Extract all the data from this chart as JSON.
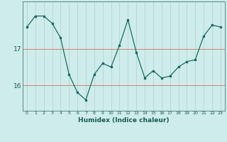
{
  "x": [
    0,
    1,
    2,
    3,
    4,
    5,
    6,
    7,
    8,
    9,
    10,
    11,
    12,
    13,
    14,
    15,
    16,
    17,
    18,
    19,
    20,
    21,
    22,
    23
  ],
  "y": [
    17.6,
    17.9,
    17.9,
    17.7,
    17.3,
    16.3,
    15.8,
    15.6,
    16.3,
    16.6,
    16.5,
    17.1,
    17.8,
    16.9,
    16.2,
    16.4,
    16.2,
    16.25,
    16.5,
    16.65,
    16.7,
    17.35,
    17.65,
    17.6
  ],
  "xlabel": "Humidex (Indice chaleur)",
  "yticks": [
    16,
    17
  ],
  "ytick_labels": [
    "16",
    "17"
  ],
  "ylim": [
    15.3,
    18.3
  ],
  "xlim": [
    -0.5,
    23.5
  ],
  "bg_color": "#ceecea",
  "line_color": "#1a6b62",
  "grid_h_color": "#d08080",
  "grid_v_color": "#b8d8d5",
  "figsize": [
    3.2,
    2.0
  ],
  "dpi": 100
}
